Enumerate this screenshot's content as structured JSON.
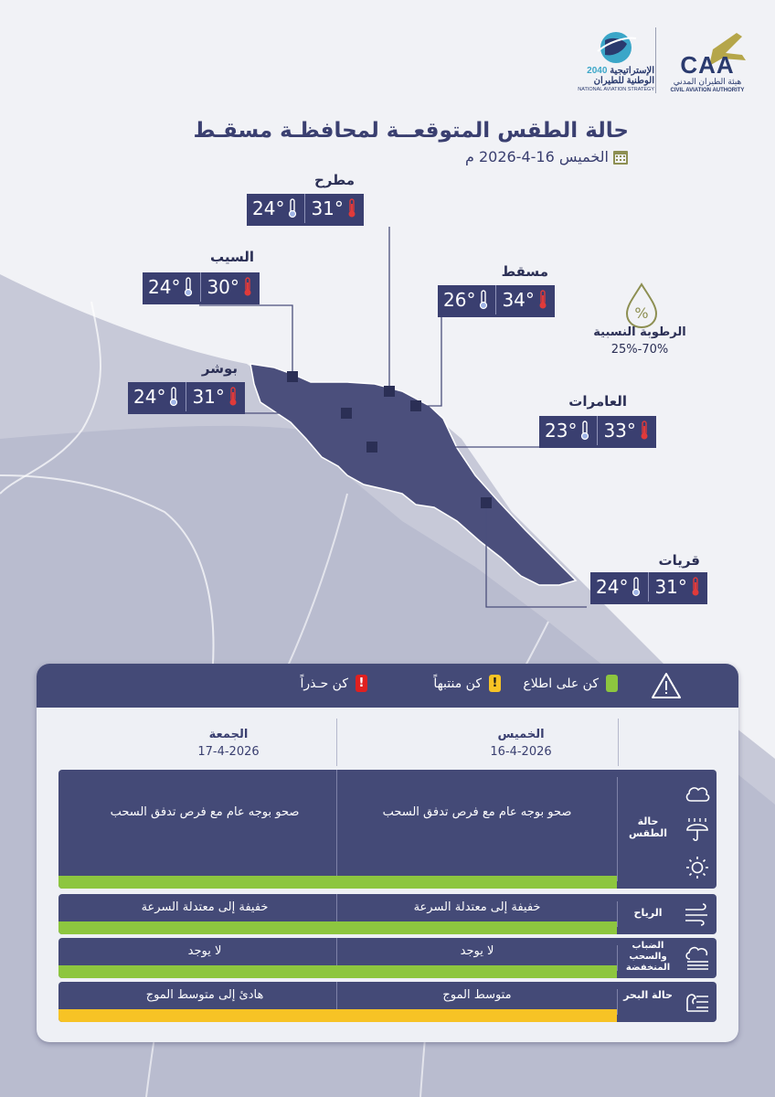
{
  "header": {
    "caa_abbr": "CAA",
    "caa_name_ar": "هيئة الطيران المدني",
    "caa_name_en": "CIVIL AVIATION AUTHORITY",
    "strategy_year": "2040",
    "strategy_line1": "الإستراتيجية",
    "strategy_line2": "الوطنية للطيران",
    "strategy_en": "NATIONAL AVIATION STRATEGY"
  },
  "title": "حالة الطقس المتوقعــة لمحافظـة مسقـط",
  "date": "الخميس 16-4-2026 م",
  "cities": [
    {
      "name": "مطرح",
      "max": "31°",
      "min": "24°"
    },
    {
      "name": "السيب",
      "max": "30°",
      "min": "24°"
    },
    {
      "name": "مسقط",
      "max": "34°",
      "min": "26°"
    },
    {
      "name": "بوشر",
      "max": "31°",
      "min": "24°"
    },
    {
      "name": "العامرات",
      "max": "33°",
      "min": "23°"
    },
    {
      "name": "قريات",
      "max": "31°",
      "min": "24°"
    }
  ],
  "humidity": {
    "label": "الرطوبة النسبية",
    "value": "25%-70%"
  },
  "legend": [
    {
      "label": "كن على اطلاع",
      "color": "#8dc63f",
      "mark": ""
    },
    {
      "label": "كن منتبهاً",
      "color": "#f7c325",
      "mark": "!"
    },
    {
      "label": "كن حـذراً",
      "color": "#e02020",
      "mark": "!"
    }
  ],
  "days": [
    {
      "day": "الخميس",
      "date": "16-4-2026"
    },
    {
      "day": "الجمعة",
      "date": "17-4-2026"
    }
  ],
  "rows": [
    {
      "label": "حالة الطقس",
      "thu": "صحو بوجه عام مع فرص تدفق السحب",
      "fri": "صحو بوجه عام مع فرص تدفق السحب",
      "stripe": "#8dc63f",
      "icons": [
        "cloud-icon",
        "umbrella-rain-icon",
        "sun-icon"
      ]
    },
    {
      "label": "الرياح",
      "thu": "خفيفة إلى معتدلة السرعة",
      "fri": "خفيفة إلى معتدلة السرعة",
      "stripe": "#8dc63f",
      "icons": [
        "wind-icon"
      ]
    },
    {
      "label": "الضباب والسحب المنخفضة",
      "thu": "لا يوجد",
      "fri": "لا يوجد",
      "stripe": "#8dc63f",
      "icons": [
        "fog-icon"
      ]
    },
    {
      "label": "حالة البحر",
      "thu": "متوسط الموج",
      "fri": "هادئ إلى متوسط الموج",
      "stripe": "#f7c325",
      "icons": [
        "wave-icon"
      ]
    }
  ]
}
